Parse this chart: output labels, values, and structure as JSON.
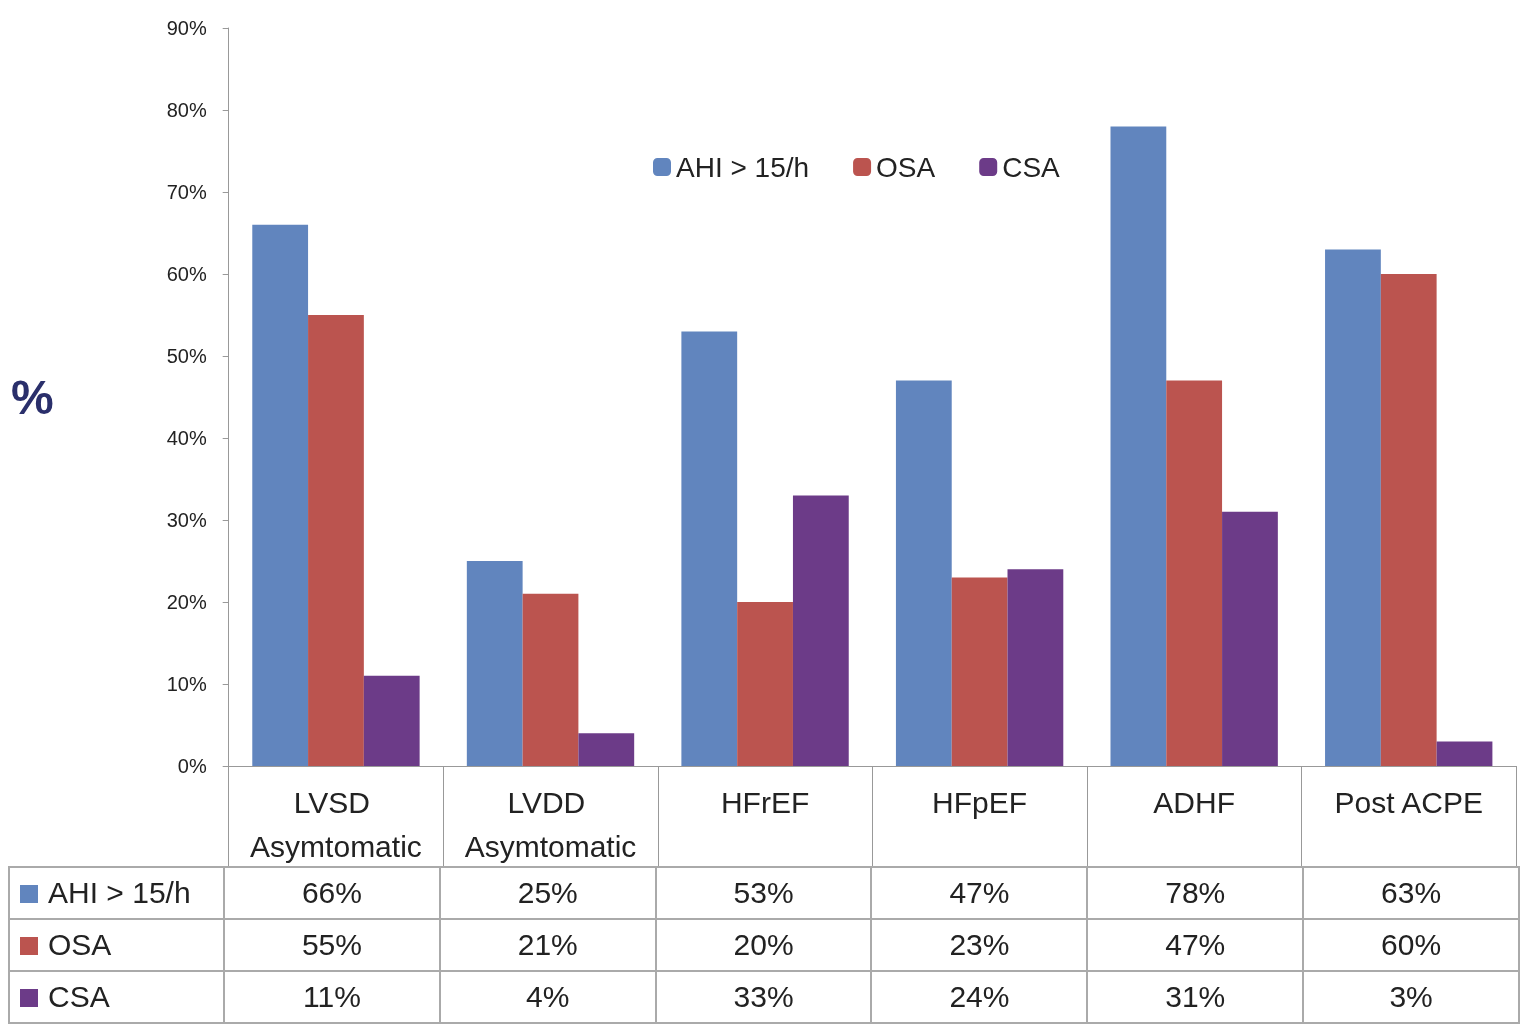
{
  "chart_data": {
    "type": "bar",
    "ylabel": "%",
    "categories": [
      "LVSD Asymtomatic",
      "LVDD Asymtomatic",
      "HFrEF",
      "HFpEF",
      "ADHF",
      "Post ACPE"
    ],
    "series": [
      {
        "name": "AHI > 15/h",
        "color": "#6185be",
        "values": [
          66,
          25,
          53,
          47,
          78,
          63
        ],
        "value_labels": [
          "66%",
          "25%",
          "53%",
          "47%",
          "78%",
          "63%"
        ]
      },
      {
        "name": "OSA",
        "color": "#bb544f",
        "values": [
          55,
          21,
          20,
          23,
          47,
          60
        ],
        "value_labels": [
          "55%",
          "21%",
          "20%",
          "23%",
          "47%",
          "60%"
        ]
      },
      {
        "name": "CSA",
        "color": "#6c3b88",
        "values": [
          11,
          4,
          33,
          24,
          31,
          3
        ],
        "value_labels": [
          "11%",
          "4%",
          "33%",
          "24%",
          "31%",
          "3%"
        ]
      }
    ],
    "ylim": [
      0,
      90
    ],
    "yticks": [
      {
        "value": 0,
        "label": "0%"
      },
      {
        "value": 10,
        "label": "10%"
      },
      {
        "value": 20,
        "label": "20%"
      },
      {
        "value": 30,
        "label": "30%"
      },
      {
        "value": 40,
        "label": "40%"
      },
      {
        "value": 50,
        "label": "50%"
      },
      {
        "value": 60,
        "label": "60%"
      },
      {
        "value": 70,
        "label": "70%"
      },
      {
        "value": 80,
        "label": "80%"
      },
      {
        "value": 90,
        "label": "90%"
      }
    ],
    "grid": false,
    "legend": "top"
  }
}
